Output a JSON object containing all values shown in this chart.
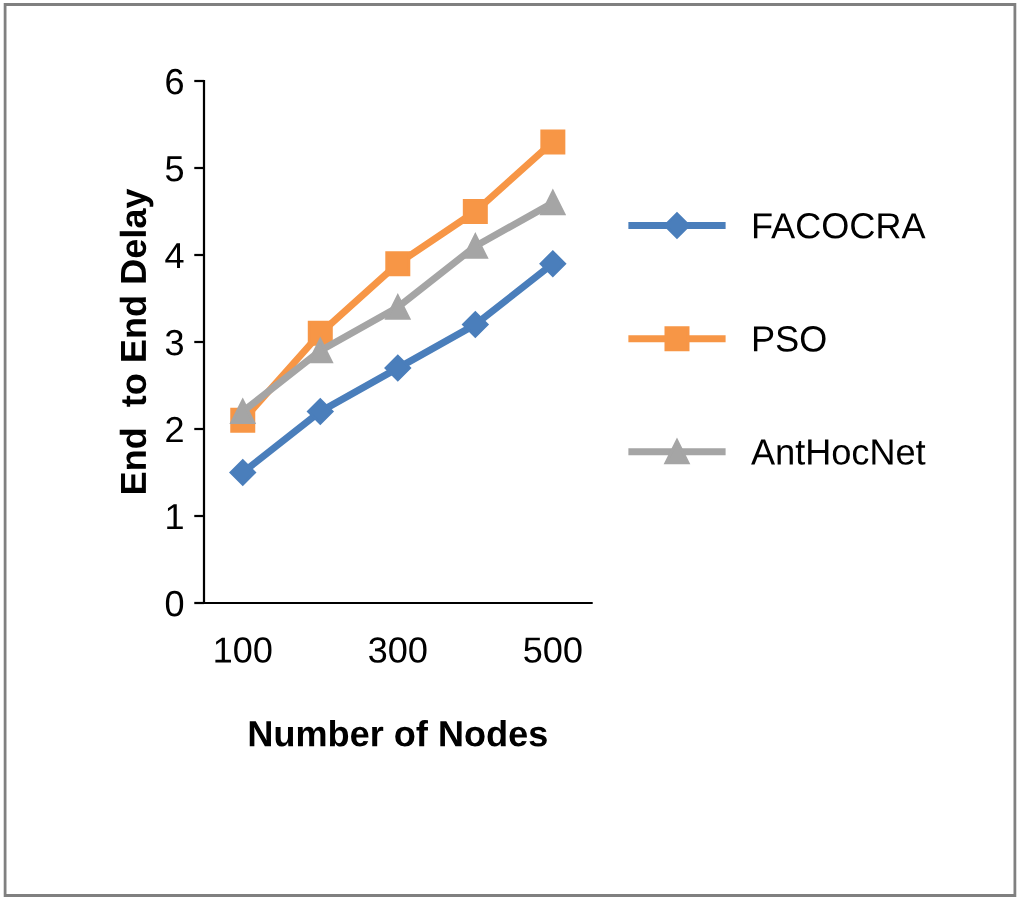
{
  "chart_data": {
    "type": "line",
    "xlabel": "Number of Nodes",
    "ylabel": "End  to End Delay",
    "categories": [
      "100",
      null,
      "300",
      null,
      "500"
    ],
    "series": [
      {
        "name": "FACOCRA",
        "color": "#4a7ebb",
        "marker": "diamond",
        "values": [
          1.5,
          2.2,
          2.7,
          3.2,
          3.9
        ]
      },
      {
        "name": "PSO",
        "color": "#f79646",
        "marker": "square",
        "values": [
          2.1,
          3.1,
          3.9,
          4.5,
          5.3
        ]
      },
      {
        "name": "AntHocNet",
        "color": "#a5a5a5",
        "marker": "triangle",
        "values": [
          2.2,
          2.9,
          3.4,
          4.1,
          4.6
        ]
      }
    ],
    "ylim": [
      0,
      6
    ],
    "yticks": [
      0,
      1,
      2,
      3,
      4,
      5,
      6
    ],
    "grid": false,
    "legend": "right"
  }
}
